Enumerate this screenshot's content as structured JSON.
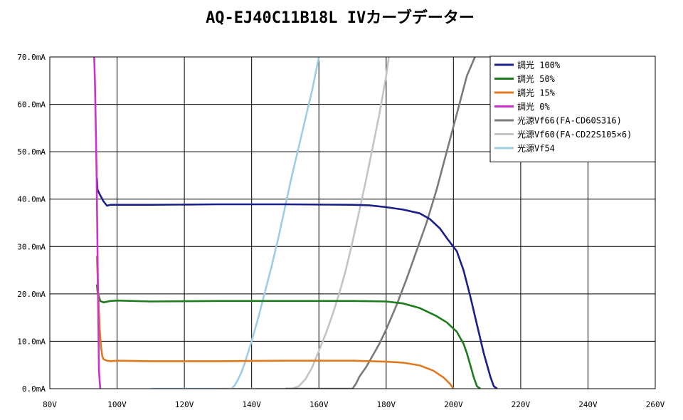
{
  "chart_data": {
    "type": "line",
    "title": "AQ-EJ40C11B18L IVカーブデーター",
    "xlabel": "",
    "ylabel": "",
    "xlim": [
      80,
      260
    ],
    "ylim": [
      0,
      70
    ],
    "x_ticks": [
      "80V",
      "100V",
      "120V",
      "140V",
      "160V",
      "180V",
      "200V",
      "220V",
      "240V",
      "260V"
    ],
    "y_ticks": [
      "0.0mA",
      "10.0mA",
      "20.0mA",
      "30.0mA",
      "40.0mA",
      "50.0mA",
      "60.0mA",
      "70.0mA"
    ],
    "grid": true,
    "legend_position": "top-right",
    "series": [
      {
        "name": "調光 100%",
        "color": "#1a1f8c",
        "x": [
          94.0,
          94.2,
          94.5,
          95,
          96,
          97,
          98,
          100,
          110,
          130,
          150,
          170,
          175,
          180,
          185,
          190,
          193,
          196,
          198,
          201,
          203,
          205,
          207,
          209,
          211,
          212,
          213
        ],
        "y": [
          44.5,
          42,
          41.5,
          40.8,
          39.5,
          38.6,
          38.8,
          38.8,
          38.8,
          38.9,
          38.9,
          38.8,
          38.7,
          38.3,
          37.8,
          37.0,
          35.8,
          33.8,
          31.8,
          29.0,
          25.0,
          19.5,
          13.5,
          7.5,
          2.5,
          0.5,
          0
        ]
      },
      {
        "name": "調光 50%",
        "color": "#1e7b1e",
        "x": [
          94.0,
          94.2,
          94.6,
          95,
          96,
          98,
          100,
          110,
          130,
          150,
          170,
          180,
          185,
          190,
          195,
          198,
          201,
          203,
          204,
          205,
          206,
          207,
          208
        ],
        "y": [
          22.0,
          20.5,
          19.5,
          18.5,
          18.2,
          18.5,
          18.6,
          18.4,
          18.5,
          18.5,
          18.5,
          18.4,
          18.0,
          17.0,
          15.3,
          14.0,
          12.0,
          9.5,
          7.5,
          5.0,
          2.5,
          0.5,
          0
        ]
      },
      {
        "name": "調光 15%",
        "color": "#e07a20",
        "x": [
          94.0,
          94.2,
          94.5,
          94.8,
          95.2,
          95.6,
          96,
          97,
          98,
          100,
          110,
          130,
          150,
          170,
          180,
          185,
          190,
          194,
          197,
          199,
          200
        ],
        "y": [
          28.0,
          24.0,
          18.0,
          13.0,
          9.0,
          6.8,
          6.2,
          5.9,
          5.8,
          5.9,
          5.8,
          5.8,
          5.9,
          5.9,
          5.7,
          5.5,
          4.9,
          3.8,
          2.4,
          1.0,
          0
        ]
      },
      {
        "name": "調光 0%",
        "color": "#cc33cc",
        "x": [
          93.2,
          93.4,
          93.6,
          93.9,
          94.1,
          94.3,
          94.5,
          94.6,
          95
        ],
        "y": [
          70,
          65,
          58,
          46,
          34,
          22,
          10,
          4,
          0
        ]
      },
      {
        "name": "光源Vf66(FA-CD60S316)",
        "color": "#7a7a7a",
        "x": [
          150,
          170,
          171,
          172,
          174,
          176,
          178,
          180,
          183,
          186,
          189,
          192,
          195,
          198,
          201,
          204,
          207
        ],
        "y": [
          0,
          0,
          1,
          2.5,
          4.5,
          7,
          9.5,
          12.5,
          17.5,
          23,
          29,
          35,
          42,
          50,
          58,
          66,
          71
        ]
      },
      {
        "name": "光源Vf60(FA-CD22S105×6)",
        "color": "#c4c4c4",
        "x": [
          130,
          152,
          154,
          156,
          158,
          160,
          162,
          164,
          166,
          168,
          170,
          172,
          174,
          176,
          178,
          180,
          181
        ],
        "y": [
          0,
          0,
          0.5,
          2,
          4.5,
          8,
          11.5,
          15.5,
          20,
          25,
          31,
          37.5,
          44,
          51,
          58,
          66,
          71
        ]
      },
      {
        "name": "光源Vf54",
        "color": "#9ecde6",
        "x": [
          110,
          134,
          135,
          136,
          137,
          138,
          140,
          142,
          144,
          146,
          148,
          150,
          152,
          154,
          156,
          158,
          159,
          160
        ],
        "y": [
          0,
          0,
          0.7,
          2,
          3.5,
          5.5,
          10,
          15,
          20.5,
          26,
          32,
          38.5,
          45,
          51,
          57,
          63,
          66.5,
          70
        ]
      }
    ]
  }
}
